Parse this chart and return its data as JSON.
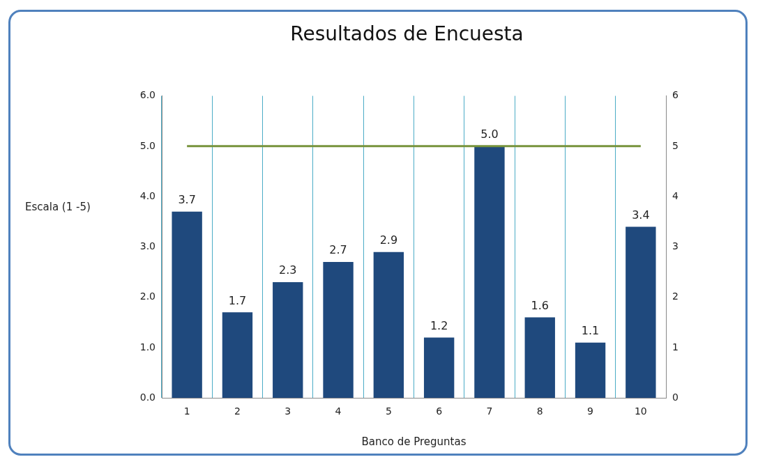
{
  "chart_data": {
    "type": "bar",
    "title": "Resultados de Encuesta",
    "xlabel": "Banco de Preguntas",
    "ylabel": "Escala (1 -5)",
    "categories": [
      "1",
      "2",
      "3",
      "4",
      "5",
      "6",
      "7",
      "8",
      "9",
      "10"
    ],
    "series": [
      {
        "color": "#1f497d",
        "values": [
          3.7,
          1.7,
          2.3,
          2.7,
          2.9,
          1.2,
          5.0,
          1.6,
          1.1,
          3.4
        ],
        "value_labels": [
          "3.7",
          "1.7",
          "2.3",
          "2.7",
          "2.9",
          "1.2",
          "5.0",
          "1.6",
          "1.1",
          "3.4"
        ]
      },
      {
        "type": "line",
        "axis": "y2",
        "color": "#77933c",
        "values": [
          5,
          5,
          5,
          5,
          5,
          5,
          5,
          5,
          5,
          5
        ],
        "marker": "none"
      }
    ],
    "ylim": [
      0,
      6
    ],
    "yticks": [
      {
        "value": 0,
        "label": "0.0"
      },
      {
        "value": 1,
        "label": "1.0"
      },
      {
        "value": 2,
        "label": "2.0"
      },
      {
        "value": 3,
        "label": "3.0"
      },
      {
        "value": 4,
        "label": "4.0"
      },
      {
        "value": 5,
        "label": "5.0"
      },
      {
        "value": 6,
        "label": "6.0"
      }
    ],
    "y2lim": [
      0,
      6
    ],
    "y2ticks": [
      0,
      1,
      2,
      3,
      4,
      5,
      6
    ],
    "grid": "x",
    "legend": false
  }
}
